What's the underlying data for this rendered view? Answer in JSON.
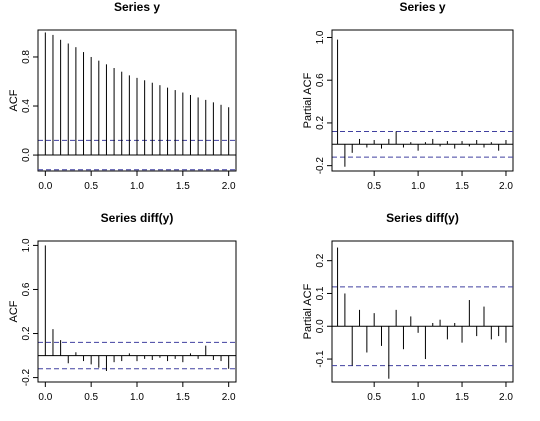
{
  "chart_data": [
    {
      "type": "bar",
      "title": "Series  y",
      "xlabel": "",
      "ylabel": "ACF",
      "xlim": [
        -0.08,
        2.08
      ],
      "ylim": [
        -0.13,
        1.02
      ],
      "xticks": [
        0.0,
        0.5,
        1.0,
        1.5,
        2.0
      ],
      "xtick_labels": [
        "0.0",
        "0.5",
        "1.0",
        "1.5",
        "2.0"
      ],
      "yticks": [
        0.0,
        0.4,
        0.8
      ],
      "ytick_labels": [
        "0.0",
        "0.4",
        "0.8"
      ],
      "ytick_rotated": true,
      "zero_line": true,
      "ci": 0.12,
      "ci_color": "#4040a0",
      "x": [
        0.0,
        0.0833,
        0.1667,
        0.25,
        0.3333,
        0.4167,
        0.5,
        0.5833,
        0.6667,
        0.75,
        0.8333,
        0.9167,
        1.0,
        1.0833,
        1.1667,
        1.25,
        1.3333,
        1.4167,
        1.5,
        1.5833,
        1.6667,
        1.75,
        1.8333,
        1.9167,
        2.0
      ],
      "values": [
        1.0,
        0.98,
        0.94,
        0.91,
        0.88,
        0.84,
        0.8,
        0.77,
        0.74,
        0.71,
        0.68,
        0.65,
        0.63,
        0.61,
        0.59,
        0.57,
        0.55,
        0.53,
        0.51,
        0.49,
        0.47,
        0.45,
        0.43,
        0.41,
        0.39
      ]
    },
    {
      "type": "bar",
      "title": "Series  y",
      "xlabel": "",
      "ylabel": "Partial ACF",
      "xlim": [
        0.02,
        2.08
      ],
      "ylim": [
        -0.25,
        1.07
      ],
      "xticks": [
        0.5,
        1.0,
        1.5,
        2.0
      ],
      "xtick_labels": [
        "0.5",
        "1.0",
        "1.5",
        "2.0"
      ],
      "yticks": [
        -0.2,
        0.2,
        0.6,
        1.0
      ],
      "ytick_labels": [
        "-0.2",
        "0.2",
        "0.6",
        "1.0"
      ],
      "ytick_rotated": true,
      "zero_line": true,
      "ci": 0.12,
      "ci_color": "#4040a0",
      "x": [
        0.0833,
        0.1667,
        0.25,
        0.3333,
        0.4167,
        0.5,
        0.5833,
        0.6667,
        0.75,
        0.8333,
        0.9167,
        1.0,
        1.0833,
        1.1667,
        1.25,
        1.3333,
        1.4167,
        1.5,
        1.5833,
        1.6667,
        1.75,
        1.8333,
        1.9167,
        2.0
      ],
      "values": [
        0.98,
        -0.21,
        -0.08,
        0.05,
        -0.03,
        0.04,
        -0.04,
        0.05,
        0.12,
        -0.03,
        0.02,
        -0.06,
        0.02,
        0.05,
        -0.02,
        0.03,
        -0.04,
        0.03,
        -0.02,
        0.04,
        -0.03,
        0.02,
        -0.06,
        0.04
      ]
    },
    {
      "type": "bar",
      "title": "Series  diff(y)",
      "xlabel": "",
      "ylabel": "ACF",
      "xlim": [
        -0.08,
        2.08
      ],
      "ylim": [
        -0.24,
        1.04
      ],
      "xticks": [
        0.0,
        0.5,
        1.0,
        1.5,
        2.0
      ],
      "xtick_labels": [
        "0.0",
        "0.5",
        "1.0",
        "1.5",
        "2.0"
      ],
      "yticks": [
        -0.2,
        0.2,
        0.6,
        1.0
      ],
      "ytick_labels": [
        "-0.2",
        "0.2",
        "0.6",
        "1.0"
      ],
      "ytick_rotated": true,
      "zero_line": true,
      "ci": 0.12,
      "ci_color": "#4040a0",
      "x": [
        0.0,
        0.0833,
        0.1667,
        0.25,
        0.3333,
        0.4167,
        0.5,
        0.5833,
        0.6667,
        0.75,
        0.8333,
        0.9167,
        1.0,
        1.0833,
        1.1667,
        1.25,
        1.3333,
        1.4167,
        1.5,
        1.5833,
        1.6667,
        1.75,
        1.8333,
        1.9167,
        2.0
      ],
      "values": [
        1.0,
        0.24,
        0.14,
        -0.07,
        0.03,
        -0.05,
        -0.08,
        -0.11,
        -0.14,
        -0.06,
        -0.05,
        0.02,
        -0.05,
        -0.03,
        -0.04,
        -0.02,
        -0.05,
        -0.03,
        -0.06,
        0.02,
        -0.03,
        0.09,
        -0.04,
        -0.05,
        -0.12
      ]
    },
    {
      "type": "bar",
      "title": "Series  diff(y)",
      "xlabel": "",
      "ylabel": "Partial ACF",
      "xlim": [
        0.02,
        2.08
      ],
      "ylim": [
        -0.17,
        0.26
      ],
      "xticks": [
        0.5,
        1.0,
        1.5,
        2.0
      ],
      "xtick_labels": [
        "0.5",
        "1.0",
        "1.5",
        "2.0"
      ],
      "yticks": [
        -0.1,
        0.0,
        0.1,
        0.2
      ],
      "ytick_labels": [
        "-0.1",
        "0.0",
        "0.1",
        "0.2"
      ],
      "ytick_rotated": true,
      "zero_line": true,
      "ci": 0.12,
      "ci_color": "#4040a0",
      "x": [
        0.0833,
        0.1667,
        0.25,
        0.3333,
        0.4167,
        0.5,
        0.5833,
        0.6667,
        0.75,
        0.8333,
        0.9167,
        1.0,
        1.0833,
        1.1667,
        1.25,
        1.3333,
        1.4167,
        1.5,
        1.5833,
        1.6667,
        1.75,
        1.8333,
        1.9167,
        2.0
      ],
      "values": [
        0.24,
        0.1,
        -0.12,
        0.05,
        -0.08,
        0.04,
        -0.06,
        -0.16,
        0.05,
        -0.07,
        0.03,
        -0.02,
        -0.1,
        0.01,
        0.02,
        -0.04,
        0.01,
        -0.05,
        0.08,
        -0.03,
        0.06,
        -0.04,
        -0.03,
        -0.05
      ]
    }
  ]
}
